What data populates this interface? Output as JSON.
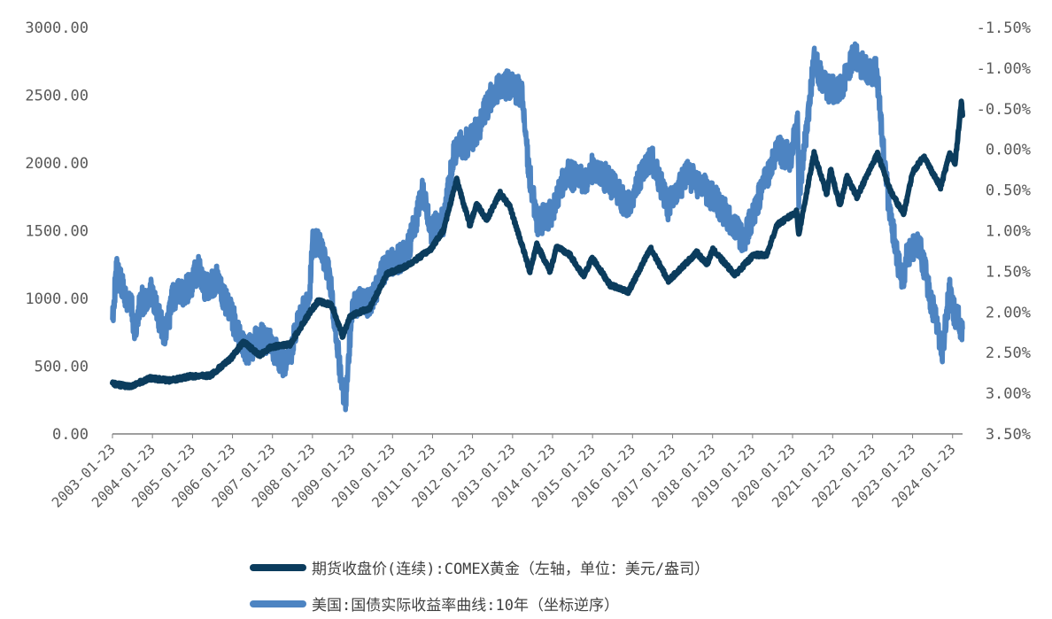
{
  "colors": {
    "gold": "#0b3c5d",
    "yield": "#4d84c2",
    "axis": "#7f7f7f",
    "text": "#595959"
  },
  "chart_data": {
    "type": "line",
    "x_type": "date",
    "y_left": {
      "range": [
        0,
        3000
      ],
      "ticks": [
        0,
        500,
        1000,
        1500,
        2000,
        2500,
        3000
      ],
      "tick_labels": [
        "0.00",
        "500.00",
        "1000.00",
        "1500.00",
        "2000.00",
        "2500.00",
        "3000.00"
      ]
    },
    "y_right": {
      "range": [
        -1.5,
        3.5
      ],
      "inverted": true,
      "ticks": [
        -1.5,
        -1.0,
        -0.5,
        0.0,
        0.5,
        1.0,
        1.5,
        2.0,
        2.5,
        3.0,
        3.5
      ],
      "tick_labels": [
        "-1.50%",
        "-1.00%",
        "-0.50%",
        "0.00%",
        "0.50%",
        "1.00%",
        "1.50%",
        "2.00%",
        "2.50%",
        "3.00%",
        "3.50%"
      ]
    },
    "x_ticks": [
      "2003-01-23",
      "2004-01-23",
      "2005-01-23",
      "2006-01-23",
      "2007-01-23",
      "2008-01-23",
      "2009-01-23",
      "2010-01-23",
      "2011-01-23",
      "2012-01-23",
      "2013-01-23",
      "2014-01-23",
      "2015-01-23",
      "2016-01-23",
      "2017-01-23",
      "2018-01-23",
      "2019-01-23",
      "2020-01-23",
      "2021-01-23",
      "2022-01-23",
      "2023-01-23",
      "2024-01-23"
    ],
    "x_range": [
      "2003-01-23",
      "2024-04-23"
    ],
    "legend_position": "bottom",
    "series": [
      {
        "name": "期货收盘价(连续):COMEX黄金（左轴，单位：美元/盎司）",
        "axis": "left",
        "points": [
          [
            "2003-01-23",
            370
          ],
          [
            "2003-07-01",
            350
          ],
          [
            "2004-01-01",
            410
          ],
          [
            "2004-07-01",
            395
          ],
          [
            "2005-01-01",
            425
          ],
          [
            "2005-07-01",
            430
          ],
          [
            "2006-01-01",
            550
          ],
          [
            "2006-05-01",
            680
          ],
          [
            "2006-10-01",
            580
          ],
          [
            "2007-01-01",
            640
          ],
          [
            "2007-07-01",
            660
          ],
          [
            "2008-01-01",
            900
          ],
          [
            "2008-03-15",
            980
          ],
          [
            "2008-07-15",
            950
          ],
          [
            "2008-10-25",
            720
          ],
          [
            "2009-01-01",
            870
          ],
          [
            "2009-07-01",
            930
          ],
          [
            "2009-12-01",
            1180
          ],
          [
            "2010-06-01",
            1240
          ],
          [
            "2011-01-01",
            1360
          ],
          [
            "2011-05-01",
            1500
          ],
          [
            "2011-09-01",
            1880
          ],
          [
            "2011-12-30",
            1540
          ],
          [
            "2012-03-01",
            1700
          ],
          [
            "2012-06-01",
            1580
          ],
          [
            "2012-10-01",
            1780
          ],
          [
            "2013-01-01",
            1670
          ],
          [
            "2013-04-20",
            1390
          ],
          [
            "2013-06-30",
            1200
          ],
          [
            "2013-09-01",
            1400
          ],
          [
            "2013-12-31",
            1200
          ],
          [
            "2014-03-01",
            1380
          ],
          [
            "2014-07-01",
            1320
          ],
          [
            "2014-11-01",
            1160
          ],
          [
            "2015-01-20",
            1300
          ],
          [
            "2015-07-01",
            1100
          ],
          [
            "2015-12-17",
            1050
          ],
          [
            "2016-07-06",
            1370
          ],
          [
            "2016-12-15",
            1130
          ],
          [
            "2017-09-01",
            1340
          ],
          [
            "2017-12-01",
            1250
          ],
          [
            "2018-01-25",
            1360
          ],
          [
            "2018-08-15",
            1175
          ],
          [
            "2019-02-01",
            1320
          ],
          [
            "2019-06-01",
            1320
          ],
          [
            "2019-09-01",
            1540
          ],
          [
            "2020-03-01",
            1640
          ],
          [
            "2020-03-19",
            1470
          ],
          [
            "2020-08-06",
            2070
          ],
          [
            "2020-11-30",
            1770
          ],
          [
            "2021-01-05",
            1950
          ],
          [
            "2021-03-30",
            1680
          ],
          [
            "2021-06-01",
            1900
          ],
          [
            "2021-09-01",
            1750
          ],
          [
            "2022-03-08",
            2070
          ],
          [
            "2022-07-01",
            1800
          ],
          [
            "2022-11-01",
            1620
          ],
          [
            "2023-01-23",
            1930
          ],
          [
            "2023-05-04",
            2050
          ],
          [
            "2023-10-05",
            1820
          ],
          [
            "2023-12-28",
            2070
          ],
          [
            "2024-02-14",
            1990
          ],
          [
            "2024-04-12",
            2450
          ],
          [
            "2024-04-23",
            2350
          ]
        ]
      },
      {
        "name": "美国:国债实际收益率曲线:10年（坐标逆序）",
        "axis": "right",
        "points": [
          [
            "2003-01-23",
            2.05
          ],
          [
            "2003-03-01",
            1.5
          ],
          [
            "2003-06-15",
            1.9
          ],
          [
            "2003-07-20",
            1.95
          ],
          [
            "2003-08-15",
            2.3
          ],
          [
            "2003-10-01",
            1.9
          ],
          [
            "2004-01-15",
            1.75
          ],
          [
            "2004-05-15",
            2.3
          ],
          [
            "2004-08-01",
            1.8
          ],
          [
            "2005-01-01",
            1.7
          ],
          [
            "2005-03-15",
            1.45
          ],
          [
            "2005-05-01",
            1.7
          ],
          [
            "2005-09-01",
            1.6
          ],
          [
            "2006-01-01",
            2.0
          ],
          [
            "2006-06-01",
            2.5
          ],
          [
            "2006-10-01",
            2.3
          ],
          [
            "2007-01-01",
            2.4
          ],
          [
            "2007-06-01",
            2.7
          ],
          [
            "2007-09-01",
            2.2
          ],
          [
            "2007-12-31",
            1.8
          ],
          [
            "2008-01-15",
            1.2
          ],
          [
            "2008-03-15",
            1.1
          ],
          [
            "2008-07-01",
            1.6
          ],
          [
            "2008-10-25",
            3.0
          ],
          [
            "2008-11-20",
            3.1
          ],
          [
            "2009-01-15",
            2.0
          ],
          [
            "2009-04-01",
            1.8
          ],
          [
            "2009-07-01",
            1.9
          ],
          [
            "2009-12-01",
            1.4
          ],
          [
            "2010-06-01",
            1.3
          ],
          [
            "2010-11-01",
            0.5
          ],
          [
            "2011-01-01",
            1.0
          ],
          [
            "2011-05-01",
            0.9
          ],
          [
            "2011-08-15",
            0.0
          ],
          [
            "2012-01-01",
            -0.1
          ],
          [
            "2012-04-01",
            -0.3
          ],
          [
            "2012-07-25",
            -0.7
          ],
          [
            "2012-12-01",
            -0.8
          ],
          [
            "2013-04-15",
            -0.7
          ],
          [
            "2013-06-25",
            0.3
          ],
          [
            "2013-09-05",
            0.9
          ],
          [
            "2013-12-31",
            0.8
          ],
          [
            "2014-06-01",
            0.3
          ],
          [
            "2014-12-01",
            0.4
          ],
          [
            "2015-01-31",
            0.2
          ],
          [
            "2015-06-30",
            0.4
          ],
          [
            "2015-12-01",
            0.7
          ],
          [
            "2016-06-01",
            0.2
          ],
          [
            "2016-07-10",
            0.1
          ],
          [
            "2016-12-15",
            0.7
          ],
          [
            "2017-06-01",
            0.3
          ],
          [
            "2017-12-01",
            0.5
          ],
          [
            "2018-06-01",
            0.8
          ],
          [
            "2018-11-01",
            1.1
          ],
          [
            "2019-01-01",
            0.9
          ],
          [
            "2019-08-31",
            0.0
          ],
          [
            "2020-01-01",
            0.1
          ],
          [
            "2020-03-09",
            -0.3
          ],
          [
            "2020-03-19",
            0.6
          ],
          [
            "2020-08-06",
            -1.1
          ],
          [
            "2020-11-01",
            -0.8
          ],
          [
            "2021-02-25",
            -0.7
          ],
          [
            "2021-06-01",
            -0.9
          ],
          [
            "2021-08-05",
            -1.15
          ],
          [
            "2021-11-01",
            -1.0
          ],
          [
            "2022-03-01",
            -0.95
          ],
          [
            "2022-06-14",
            0.6
          ],
          [
            "2022-10-20",
            1.7
          ],
          [
            "2022-12-01",
            1.3
          ],
          [
            "2023-01-23",
            1.2
          ],
          [
            "2023-04-01",
            1.2
          ],
          [
            "2023-10-19",
            2.5
          ],
          [
            "2023-12-27",
            1.75
          ],
          [
            "2024-02-01",
            2.0
          ],
          [
            "2024-04-23",
            2.2
          ]
        ]
      }
    ]
  }
}
